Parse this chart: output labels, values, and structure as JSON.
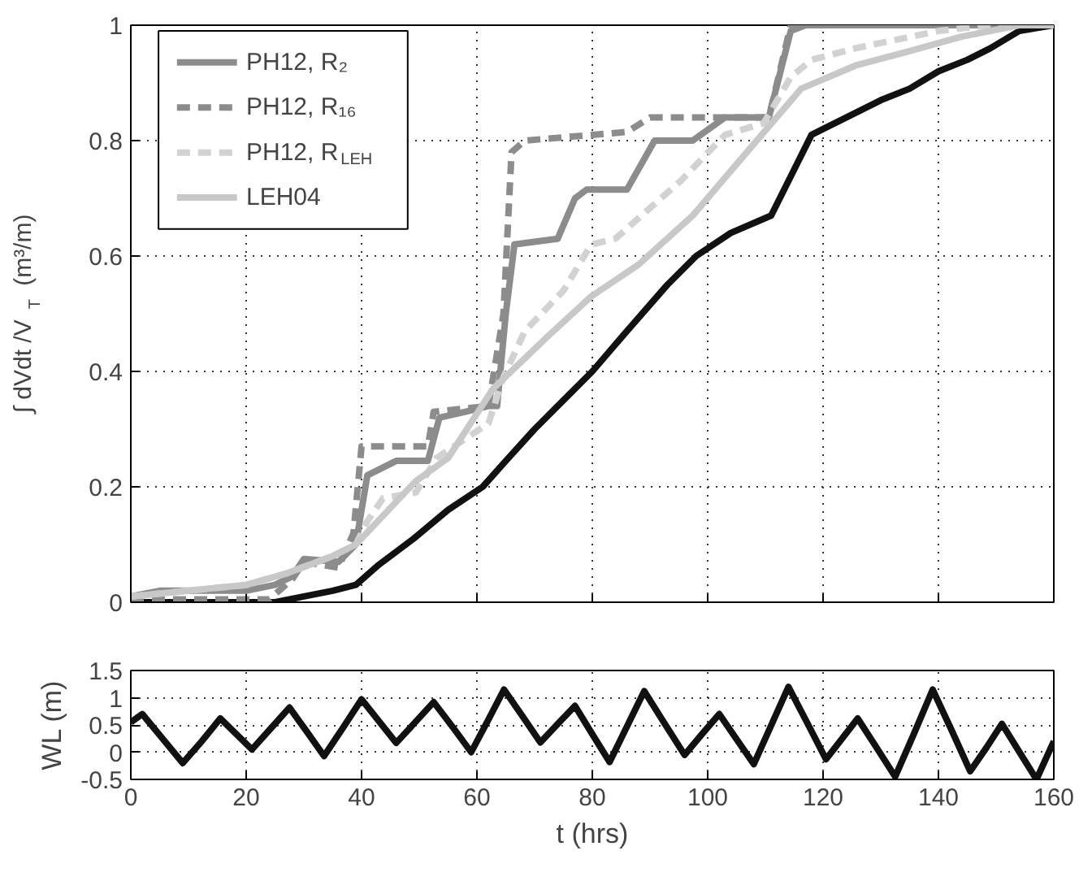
{
  "chart_data": [
    {
      "type": "line",
      "ylabel": "∫ dVdt /V$_{T}$ (m³/m)",
      "xlim": [
        0,
        160
      ],
      "xticks": [
        0,
        20,
        40,
        60,
        80,
        100,
        120,
        140,
        160
      ],
      "ylim": [
        0,
        1
      ],
      "yticks": [
        0,
        0.2,
        0.4,
        0.6,
        0.8,
        1
      ],
      "grid": true,
      "legend": "top left",
      "tick_labels": "y",
      "line_style": "solid",
      "series": [
        {
          "color": "#111111",
          "x": [
            0,
            25,
            30,
            35,
            39,
            43,
            49,
            55,
            61,
            65,
            70,
            76,
            80,
            86,
            93,
            98,
            104,
            111,
            115,
            118,
            124,
            130,
            135,
            140,
            145,
            149,
            154,
            160
          ],
          "values": [
            0,
            0,
            0.01,
            0.02,
            0.03,
            0.065,
            0.11,
            0.16,
            0.2,
            0.245,
            0.3,
            0.36,
            0.4,
            0.47,
            0.55,
            0.6,
            0.64,
            0.67,
            0.75,
            0.81,
            0.84,
            0.87,
            0.89,
            0.92,
            0.94,
            0.96,
            0.99,
            1
          ]
        },
        {
          "name": "PH12, R₂",
          "color": "#8c8c8c",
          "x": [
            0,
            5,
            20,
            25,
            28,
            30,
            36,
            39,
            41,
            46,
            51.5,
            53.5,
            58,
            62,
            63.5,
            65,
            66.5,
            74,
            77,
            79,
            86,
            90.8,
            97.4,
            103,
            110.6,
            114.4,
            117,
            160
          ],
          "values": [
            0.01,
            0.02,
            0.02,
            0.03,
            0.045,
            0.075,
            0.07,
            0.1,
            0.22,
            0.245,
            0.245,
            0.32,
            0.33,
            0.34,
            0.34,
            0.5,
            0.62,
            0.63,
            0.7,
            0.715,
            0.715,
            0.8,
            0.8,
            0.84,
            0.84,
            0.99,
            1,
            1
          ]
        },
        {
          "name": "PH12, R₁₆",
          "color": "#8c8c8c",
          "line_style": "dashed",
          "x": [
            0,
            24,
            28,
            30,
            36,
            38.6,
            40,
            51.5,
            52.5,
            62,
            64.6,
            66,
            68.3,
            86,
            90,
            110.6,
            114.4,
            160
          ],
          "values": [
            0.005,
            0.005,
            0.04,
            0.07,
            0.06,
            0.12,
            0.27,
            0.27,
            0.33,
            0.34,
            0.5,
            0.78,
            0.8,
            0.815,
            0.84,
            0.84,
            1,
            1
          ]
        },
        {
          "name": "PH12, R$_{LEH}$",
          "color": "#d2d2d2",
          "line_style": "dashed",
          "x": [
            0,
            10,
            20,
            27,
            35,
            39,
            41,
            43.7,
            49.4,
            53,
            62,
            64.6,
            68.3,
            75,
            79.8,
            84,
            95.3,
            103,
            109.7,
            114.4,
            118,
            125.6,
            140,
            149,
            160
          ],
          "values": [
            0.01,
            0.02,
            0.03,
            0.05,
            0.08,
            0.1,
            0.14,
            0.18,
            0.19,
            0.25,
            0.31,
            0.39,
            0.47,
            0.54,
            0.62,
            0.63,
            0.73,
            0.81,
            0.83,
            0.91,
            0.94,
            0.96,
            0.99,
            1,
            1
          ]
        },
        {
          "name": "LEH04",
          "color": "#c8c8c8",
          "x": [
            0,
            10,
            20,
            27,
            35,
            39,
            49.4,
            55,
            62.8,
            72.2,
            79.8,
            88,
            97.4,
            106.8,
            116.2,
            125.6,
            135,
            144,
            154,
            160
          ],
          "values": [
            0.01,
            0.02,
            0.03,
            0.05,
            0.08,
            0.1,
            0.21,
            0.25,
            0.37,
            0.46,
            0.53,
            0.585,
            0.67,
            0.78,
            0.89,
            0.93,
            0.955,
            0.98,
            1,
            1
          ]
        }
      ]
    },
    {
      "type": "line",
      "xlabel": "t (hrs)",
      "ylabel": "WL (m)",
      "xlim": [
        0,
        160
      ],
      "xticks": [
        0,
        20,
        40,
        60,
        80,
        100,
        120,
        140,
        160
      ],
      "ylim": [
        -0.5,
        1.5
      ],
      "yticks": [
        -0.5,
        0,
        0.5,
        1,
        1.5
      ],
      "grid": true,
      "legend": false,
      "line_style": "solid",
      "series": [
        {
          "color": "#111111",
          "x": [
            0,
            2,
            5.5,
            9,
            12.3,
            15.5,
            18.3,
            21,
            24.3,
            27.5,
            30.5,
            33.5,
            36.8,
            40,
            43,
            46,
            49.3,
            52.5,
            55.8,
            59,
            61.9,
            64.7,
            67.9,
            71,
            74,
            77,
            80,
            83,
            86,
            89,
            92.5,
            96,
            99,
            102,
            105,
            108,
            111,
            114,
            117.3,
            120.5,
            123.3,
            126,
            129.3,
            132.5,
            135.8,
            139,
            142.3,
            145.5,
            148.3,
            151,
            154,
            157,
            160
          ],
          "values": [
            0.55,
            0.7,
            0.25,
            -0.2,
            0.2,
            0.62,
            0.33,
            0.05,
            0.44,
            0.82,
            0.38,
            -0.07,
            0.45,
            0.97,
            0.57,
            0.17,
            0.55,
            0.92,
            0.46,
            0.0,
            0.58,
            1.15,
            0.66,
            0.18,
            0.52,
            0.85,
            0.33,
            -0.18,
            0.47,
            1.12,
            0.53,
            -0.05,
            0.33,
            0.7,
            0.24,
            -0.22,
            0.49,
            1.2,
            0.53,
            -0.13,
            0.25,
            0.62,
            0.08,
            -0.45,
            0.35,
            1.15,
            0.4,
            -0.35,
            0.08,
            0.52,
            0.01,
            -0.5,
            0.2
          ]
        }
      ]
    }
  ]
}
